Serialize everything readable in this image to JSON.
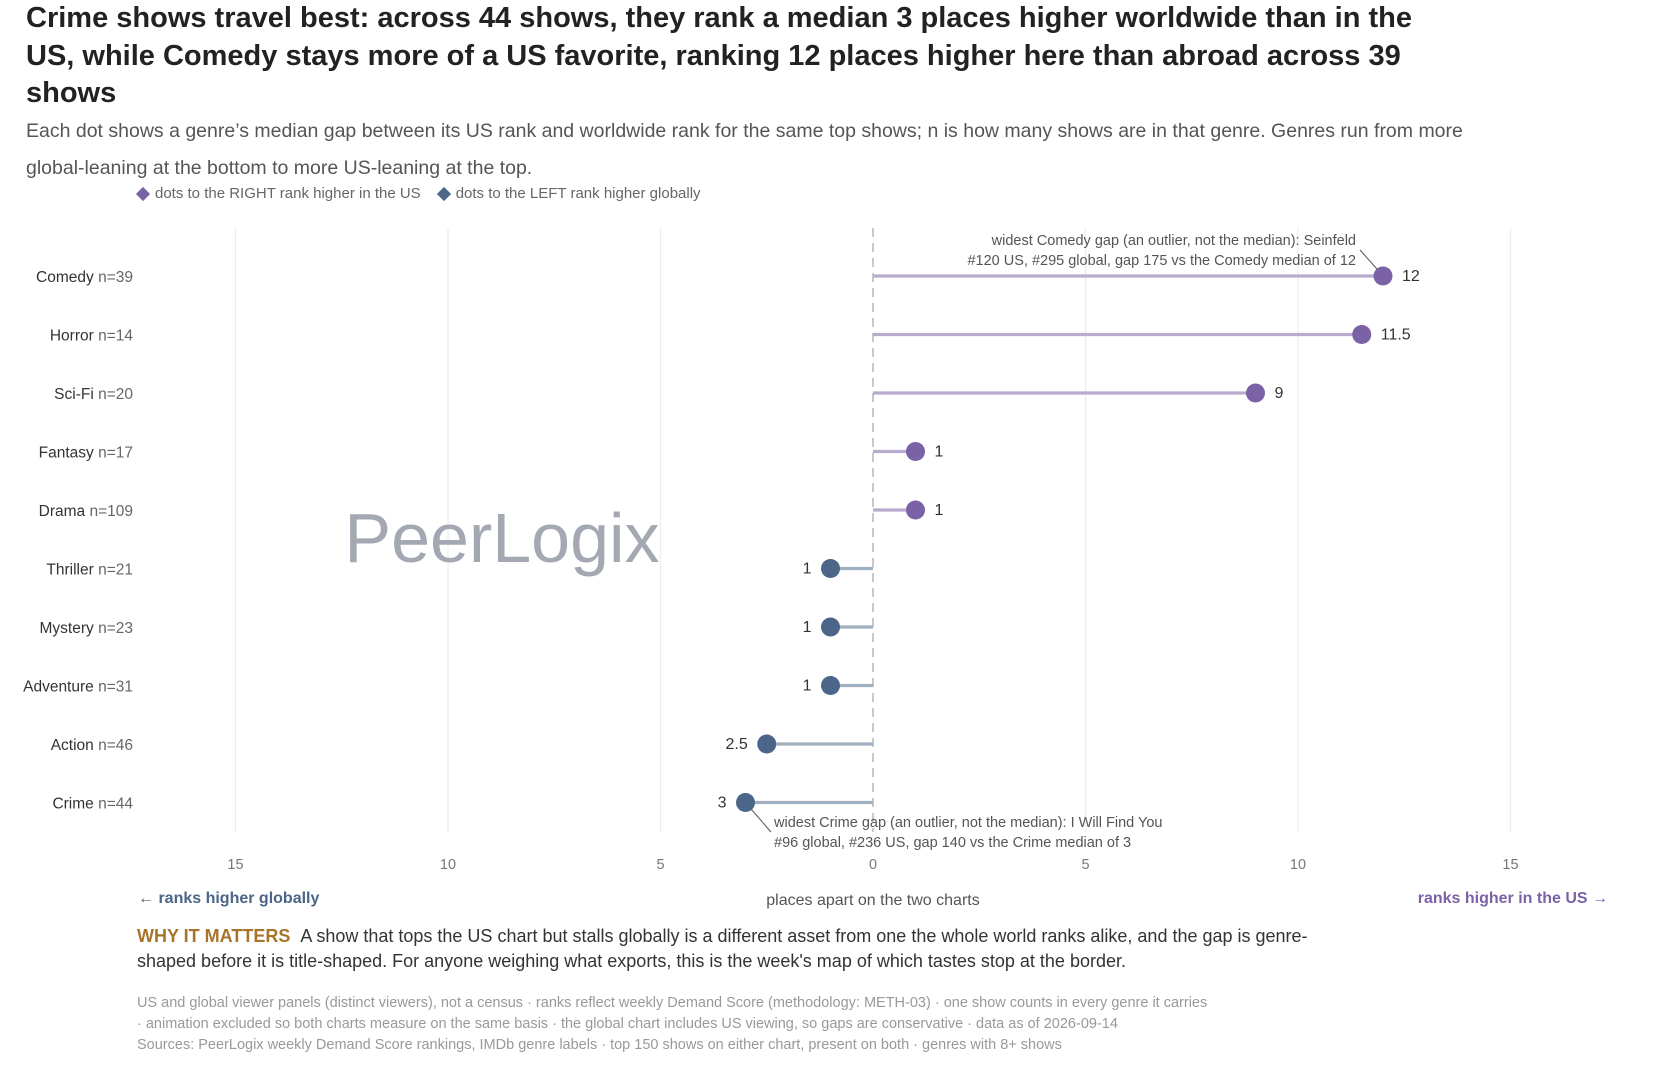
{
  "title": "Crime shows travel best: across 44 shows, they rank a median 3 places higher worldwide than in the US, while Comedy stays more of a US favorite, ranking 12 places higher here than abroad across 39 shows",
  "subtitle": "Each dot shows a genre’s median gap between its US rank and worldwide rank for the same top shows; n is how many shows are in that genre. Genres run from more global-leaning at the bottom to more US-leaning at the top.",
  "legend": {
    "right": "dots to the RIGHT rank higher in the US",
    "left": "dots to the LEFT rank higher globally"
  },
  "colors": {
    "us": "#7b62a7",
    "us_stem": "#b7acd0",
    "global": "#4b6688",
    "global_stem": "#9fb0c0",
    "why": "#a87428"
  },
  "watermark": "PeerLogix",
  "chart_data": {
    "type": "lollipop",
    "categories": [
      "Comedy",
      "Horror",
      "Sci-Fi",
      "Fantasy",
      "Drama",
      "Thriller",
      "Mystery",
      "Adventure",
      "Action",
      "Crime"
    ],
    "n_labels": [
      "n=39",
      "n=14",
      "n=20",
      "n=17",
      "n=109",
      "n=21",
      "n=23",
      "n=31",
      "n=46",
      "n=44"
    ],
    "values": [
      12,
      11.5,
      9,
      1,
      1,
      -1,
      -1,
      -1,
      -2.5,
      -3
    ],
    "value_labels": [
      "12",
      "11.5",
      "9",
      "1",
      "1",
      "1",
      "1",
      "1",
      "2.5",
      "3"
    ],
    "xlim": [
      -17,
      17
    ],
    "xticks": [
      -15,
      -10,
      -5,
      0,
      5,
      10,
      15
    ],
    "xtick_labels": [
      "15",
      "10",
      "5",
      "0",
      "5",
      "10",
      "15"
    ],
    "xlabel": "places apart on the two charts",
    "left_direction_label": "← ranks higher globally",
    "right_direction_label": "ranks higher in the US →",
    "grid": true,
    "annotations": [
      {
        "category": "Comedy",
        "lines": [
          "widest Comedy gap (an outlier, not the median): Seinfeld",
          "#120 US, #295 global, gap 175 vs the Comedy median of 12"
        ]
      },
      {
        "category": "Crime",
        "lines": [
          "widest Crime gap (an outlier, not the median): I Will Find You",
          "#96 global, #236 US, gap 140 vs the Crime median of 3"
        ]
      }
    ]
  },
  "why_label": "WHY IT MATTERS",
  "why_text": "A show that tops the US chart but stalls globally is a different asset from one the whole world ranks alike, and the gap is genre-shaped before it is title-shaped. For anyone weighing what exports, this is the week's map of which tastes stop at the border.",
  "footnotes": [
    "US and global viewer panels (distinct viewers), not a census · ranks reflect weekly Demand Score (methodology: METH-03) · one show counts in every genre it carries",
    "· animation excluded so both charts measure on the same basis · the global chart includes US viewing, so gaps are conservative · data as of 2026-09-14",
    "Sources: PeerLogix weekly Demand Score rankings, IMDb genre labels · top 150 shows on either chart, present on both · genres with 8+ shows"
  ]
}
